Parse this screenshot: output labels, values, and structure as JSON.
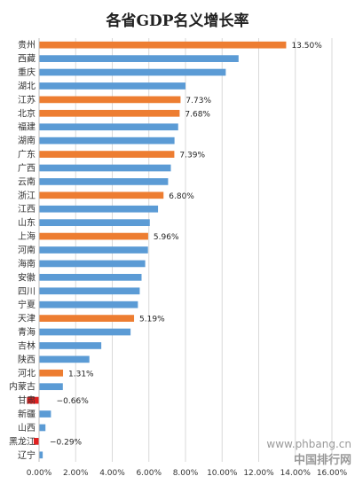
{
  "chart_data": {
    "type": "bar",
    "orientation": "horizontal",
    "title": "各省GDP名义增长率",
    "categories": [
      "贵州",
      "西藏",
      "重庆",
      "湖北",
      "江苏",
      "北京",
      "福建",
      "湖南",
      "广东",
      "广西",
      "云南",
      "浙江",
      "江西",
      "山东",
      "上海",
      "河南",
      "海南",
      "安徽",
      "四川",
      "宁夏",
      "天津",
      "青海",
      "吉林",
      "陕西",
      "河北",
      "内蒙古",
      "甘肃",
      "新疆",
      "山西",
      "黑龙江",
      "辽宁"
    ],
    "values": [
      13.5,
      10.9,
      10.2,
      8.0,
      7.73,
      7.68,
      7.6,
      7.4,
      7.39,
      7.2,
      7.05,
      6.8,
      6.5,
      6.05,
      5.96,
      5.95,
      5.8,
      5.6,
      5.5,
      5.4,
      5.19,
      5.0,
      3.4,
      2.75,
      1.31,
      1.3,
      -0.66,
      0.65,
      0.35,
      -0.29,
      0.2
    ],
    "colors": [
      "#ed7d31",
      "#5b9bd5",
      "#5b9bd5",
      "#5b9bd5",
      "#ed7d31",
      "#ed7d31",
      "#5b9bd5",
      "#5b9bd5",
      "#ed7d31",
      "#5b9bd5",
      "#5b9bd5",
      "#ed7d31",
      "#5b9bd5",
      "#5b9bd5",
      "#ed7d31",
      "#5b9bd5",
      "#5b9bd5",
      "#5b9bd5",
      "#5b9bd5",
      "#5b9bd5",
      "#ed7d31",
      "#5b9bd5",
      "#5b9bd5",
      "#5b9bd5",
      "#ed7d31",
      "#5b9bd5",
      "#e02020",
      "#5b9bd5",
      "#5b9bd5",
      "#e02020",
      "#5b9bd5"
    ],
    "data_labels": [
      "13.50%",
      "",
      "",
      "",
      "7.73%",
      "7.68%",
      "",
      "",
      "7.39%",
      "",
      "",
      "6.80%",
      "",
      "",
      "5.96%",
      "",
      "",
      "",
      "",
      "",
      "5.19%",
      "",
      "",
      "",
      "1.31%",
      "",
      "−0.66%",
      "",
      "",
      "−0.29%",
      ""
    ],
    "xlim": [
      0,
      16
    ],
    "xticks": [
      0,
      2,
      4,
      6,
      8,
      10,
      12,
      14,
      16
    ],
    "xtick_labels": [
      "0.00%",
      "2.00%",
      "4.00%",
      "6.00%",
      "8.00%",
      "10.00%",
      "12.00%",
      "14.00%",
      "16.00%"
    ],
    "grid": "vertical",
    "legend": "none"
  },
  "watermark": {
    "text": "中国排行网",
    "url": "www.phbang.cn"
  },
  "colors": {
    "highlight": "#ed7d31",
    "default": "#5b9bd5",
    "negative": "#e02020"
  }
}
